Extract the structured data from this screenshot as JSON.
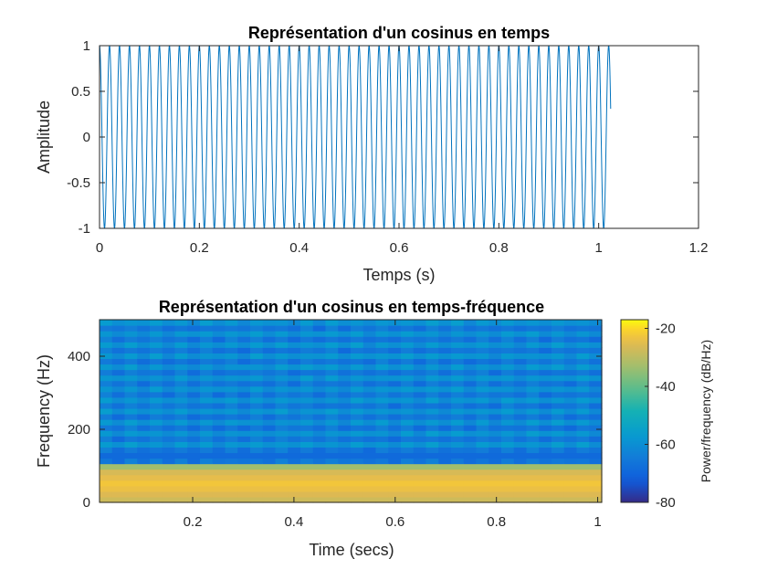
{
  "chart_data": [
    {
      "type": "line",
      "title": "Représentation d'un cosinus en temps",
      "xlabel": "Temps (s)",
      "ylabel": "Amplitude",
      "xlim": [
        0,
        1.2
      ],
      "ylim": [
        -1,
        1
      ],
      "xticks": [
        "0",
        "0.2",
        "0.4",
        "0.6",
        "0.8",
        "1",
        "1.2"
      ],
      "yticks": [
        "-1",
        "-0.5",
        "0",
        "0.5",
        "1"
      ],
      "series": [
        {
          "function": "cos(2*pi*50*t)",
          "frequency_hz": 50,
          "amplitude": 1,
          "t_start": 0,
          "t_end": 1.024,
          "color": "#0072BD"
        }
      ],
      "grid": false,
      "legend": "none"
    },
    {
      "type": "heatmap",
      "title": "Représentation d'un cosinus en temps-fréquence",
      "xlabel": "Time (secs)",
      "ylabel": "Frequency (Hz)",
      "xlim": [
        0.016,
        1.008
      ],
      "ylim": [
        0,
        500
      ],
      "xticks": [
        "0.2",
        "0.4",
        "0.6",
        "0.8",
        "1"
      ],
      "yticks": [
        "0",
        "200",
        "400"
      ],
      "colorbar": {
        "label": "Power/frequency (dB/Hz)",
        "range": [
          -80,
          -17
        ],
        "ticks": [
          "-20",
          "-40",
          "-60",
          "-80"
        ],
        "colormap": "parula"
      },
      "peak_frequency_hz": 50,
      "peak_level_db": -20,
      "background_level_db": -60,
      "time_segments": 40,
      "frequency_bins": 33,
      "grid": false,
      "legend": "none"
    }
  ]
}
